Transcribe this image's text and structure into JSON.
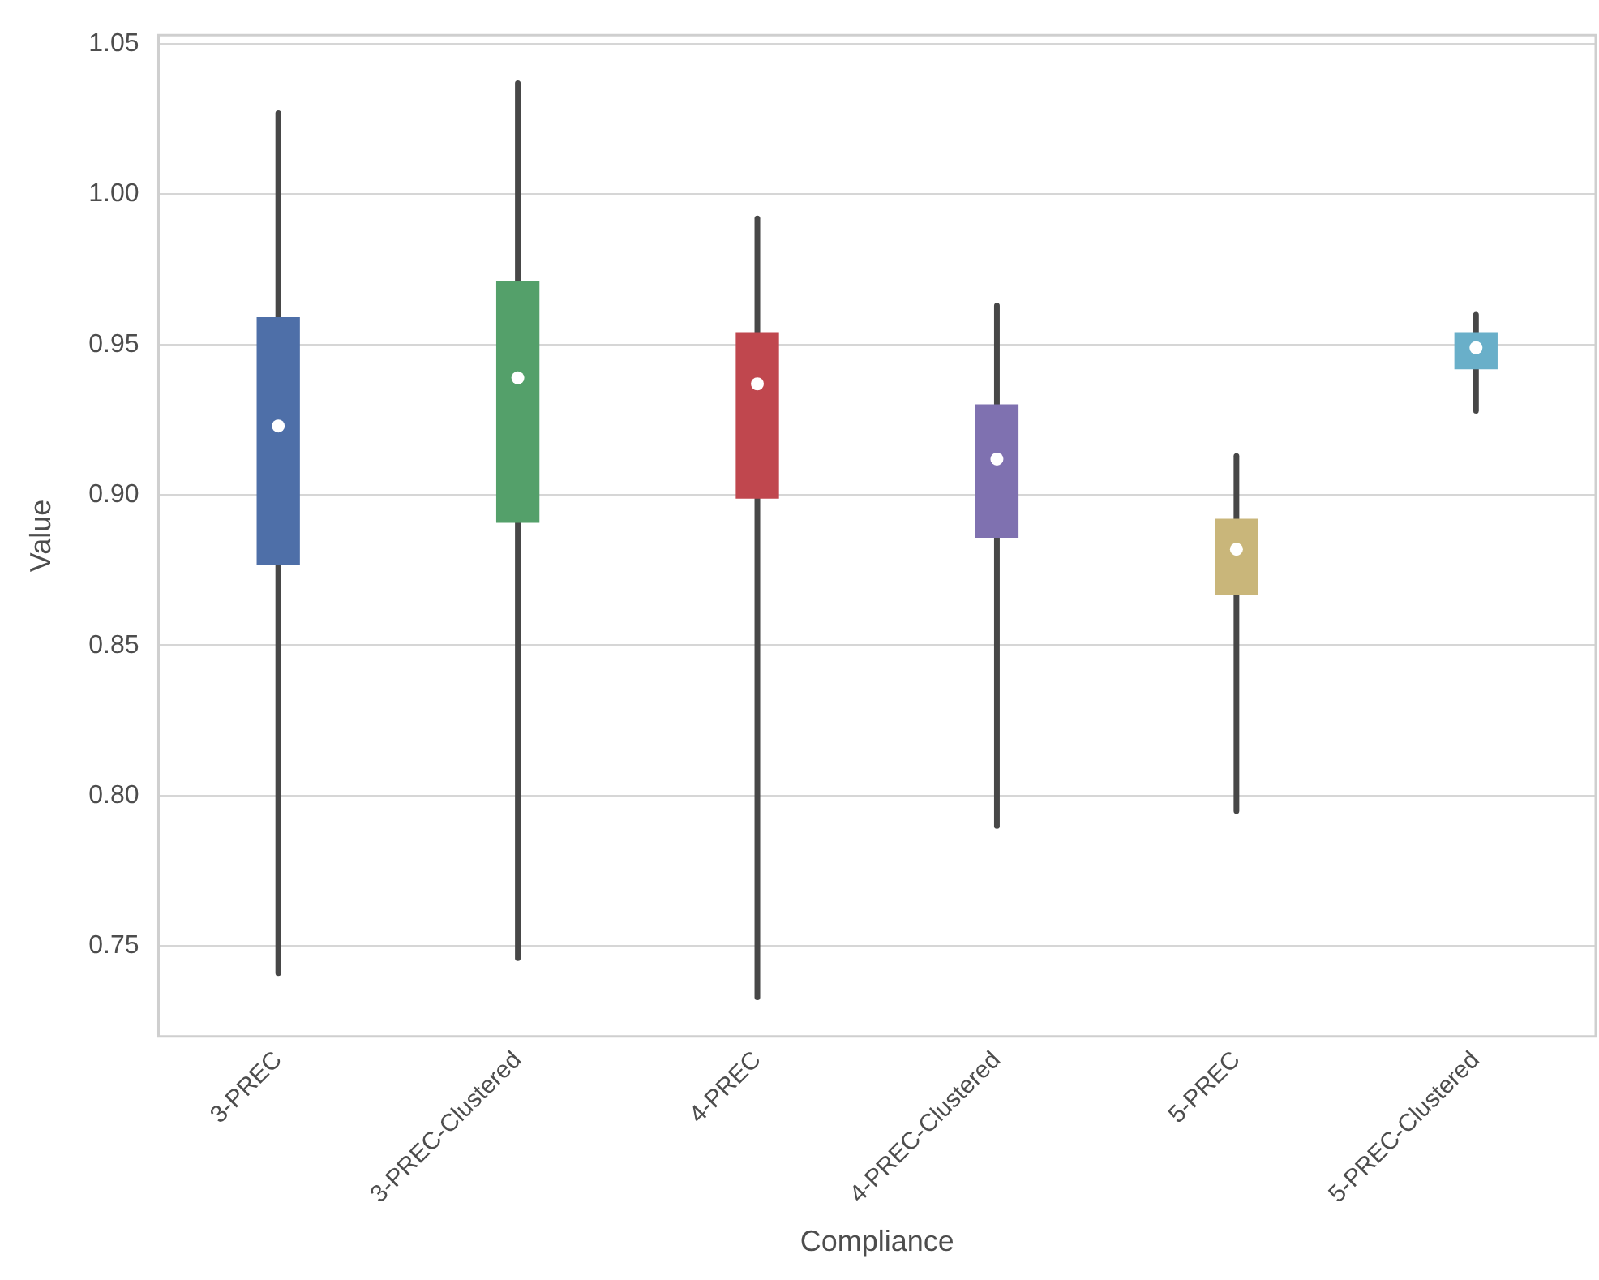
{
  "chart_data": {
    "type": "box",
    "xlabel": "Compliance",
    "ylabel": "Value",
    "categories": [
      "3-PREC",
      "3-PREC-Clustered",
      "4-PREC",
      "4-PREC-Clustered",
      "5-PREC",
      "5-PREC-Clustered"
    ],
    "colors": [
      "#4e6fa8",
      "#54a06a",
      "#c0474e",
      "#7f71b0",
      "#c9b67a",
      "#69afc9"
    ],
    "boxes": [
      {
        "low": 0.741,
        "q1": 0.877,
        "median": 0.923,
        "q3": 0.959,
        "high": 1.027
      },
      {
        "low": 0.746,
        "q1": 0.891,
        "median": 0.939,
        "q3": 0.971,
        "high": 1.037
      },
      {
        "low": 0.733,
        "q1": 0.899,
        "median": 0.937,
        "q3": 0.954,
        "high": 0.992
      },
      {
        "low": 0.79,
        "q1": 0.886,
        "median": 0.912,
        "q3": 0.93,
        "high": 0.963
      },
      {
        "low": 0.795,
        "q1": 0.867,
        "median": 0.882,
        "q3": 0.892,
        "high": 0.913
      },
      {
        "low": 0.928,
        "q1": 0.942,
        "median": 0.949,
        "q3": 0.954,
        "high": 0.96
      }
    ],
    "ylim": [
      0.72,
      1.053
    ],
    "yticks": [
      0.75,
      {
        "value": 0.8,
        "label": "0.80"
      },
      0.85,
      {
        "value": 0.9,
        "label": "0.90"
      },
      0.95,
      {
        "value": 1,
        "label": "1.00"
      },
      1.05
    ],
    "grid": "y"
  }
}
